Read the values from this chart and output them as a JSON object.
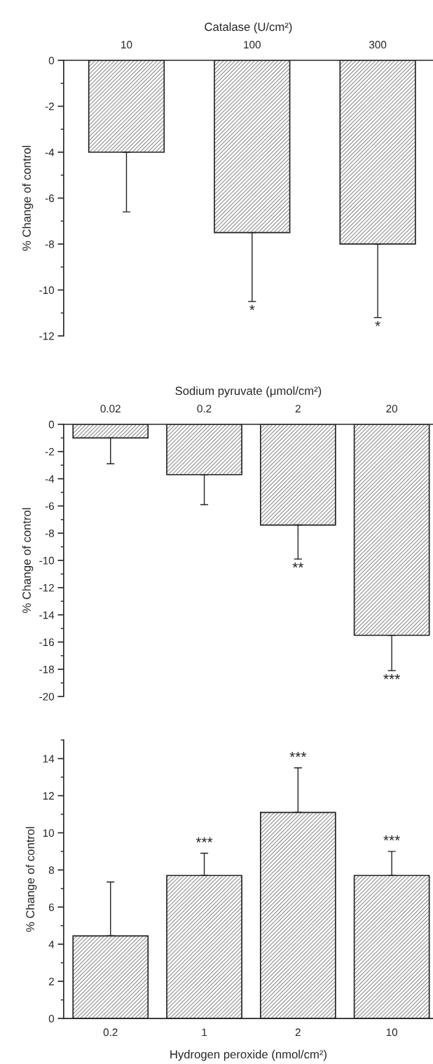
{
  "chart_data": [
    {
      "type": "bar",
      "xlabel": "Catalase (U/cm²)",
      "ylabel": "% Change of control",
      "categories": [
        "10",
        "100",
        "300"
      ],
      "values": [
        -4.0,
        -7.5,
        -8.0
      ],
      "errors": [
        [
          -6.6,
          -4.0
        ],
        [
          -10.5,
          -7.5
        ],
        [
          -11.2,
          -8.0
        ]
      ],
      "color": "#222222",
      "ylim": [
        -12,
        0
      ],
      "yticks": [
        -12,
        -10,
        -8,
        -6,
        -4,
        -2,
        0
      ],
      "grid": false,
      "annotations": [
        {
          "text": "*",
          "x": "100",
          "y": -10.5
        },
        {
          "text": "*",
          "x": "300",
          "y": -11.2
        }
      ]
    },
    {
      "type": "bar",
      "xlabel": "Sodium pyruvate (μmol/cm²)",
      "ylabel": "% Change of control",
      "categories": [
        "0.02",
        "0.2",
        "2",
        "20"
      ],
      "values": [
        -1.0,
        -3.7,
        -7.4,
        -15.5
      ],
      "errors": [
        [
          -2.9,
          -1.0
        ],
        [
          -5.9,
          -3.7
        ],
        [
          -9.9,
          -7.4
        ],
        [
          -18.1,
          -15.5
        ]
      ],
      "color": "#222222",
      "ylim": [
        -20,
        0
      ],
      "yticks": [
        -20,
        -18,
        -16,
        -14,
        -12,
        -10,
        -8,
        -6,
        -4,
        -2,
        0
      ],
      "grid": false,
      "annotations": [
        {
          "text": "**",
          "x": "2",
          "y": -9.9
        },
        {
          "text": "***",
          "x": "20",
          "y": -18.1
        }
      ]
    },
    {
      "type": "bar",
      "xlabel": "Hydrogen peroxide (nmol/cm²)",
      "ylabel": "% Change of control",
      "categories": [
        "0.2",
        "1",
        "2",
        "10"
      ],
      "values": [
        4.45,
        7.7,
        11.1,
        7.7
      ],
      "errors": [
        [
          4.45,
          7.35
        ],
        [
          7.7,
          8.9
        ],
        [
          11.1,
          13.5
        ],
        [
          7.7,
          9.0
        ]
      ],
      "color": "#222222",
      "ylim": [
        0,
        15
      ],
      "yticks": [
        0,
        2,
        4,
        6,
        8,
        10,
        12,
        14
      ],
      "grid": false,
      "annotations": [
        {
          "text": "***",
          "x": "1",
          "y": 8.9
        },
        {
          "text": "***",
          "x": "2",
          "y": 13.5
        },
        {
          "text": "***",
          "x": "10",
          "y": 9.0
        }
      ]
    }
  ]
}
